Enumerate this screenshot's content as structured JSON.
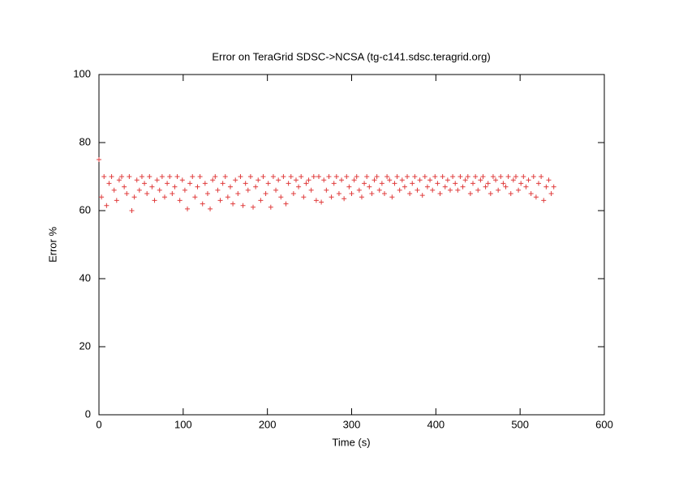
{
  "chart_data": {
    "type": "scatter",
    "title": "Error on TeraGrid SDSC->NCSA (tg-c141.sdsc.teragrid.org)",
    "xlabel": "Time (s)",
    "ylabel": "Error %",
    "xlim": [
      0,
      600
    ],
    "xticks": [
      0,
      100,
      200,
      300,
      400,
      500,
      600
    ],
    "ylim": [
      0,
      100
    ],
    "yticks": [
      0,
      20,
      40,
      60,
      80,
      100
    ],
    "marker": "plus",
    "x": [
      0,
      3,
      6,
      9,
      12,
      15,
      18,
      21,
      24,
      27,
      30,
      33,
      36,
      39,
      42,
      45,
      48,
      51,
      54,
      57,
      60,
      63,
      66,
      69,
      72,
      75,
      78,
      81,
      84,
      87,
      90,
      93,
      96,
      99,
      102,
      105,
      108,
      111,
      114,
      117,
      120,
      123,
      126,
      129,
      132,
      135,
      138,
      141,
      144,
      147,
      150,
      153,
      156,
      159,
      162,
      165,
      168,
      171,
      174,
      177,
      180,
      183,
      186,
      189,
      192,
      195,
      198,
      201,
      204,
      207,
      210,
      213,
      216,
      219,
      222,
      225,
      228,
      231,
      234,
      237,
      240,
      243,
      246,
      249,
      252,
      255,
      258,
      261,
      264,
      267,
      270,
      273,
      276,
      279,
      282,
      285,
      288,
      291,
      294,
      297,
      300,
      303,
      306,
      309,
      312,
      315,
      318,
      321,
      324,
      327,
      330,
      333,
      336,
      339,
      342,
      345,
      348,
      351,
      354,
      357,
      360,
      363,
      366,
      369,
      372,
      375,
      378,
      381,
      384,
      387,
      390,
      393,
      396,
      399,
      402,
      405,
      408,
      411,
      414,
      417,
      420,
      423,
      426,
      429,
      432,
      435,
      438,
      441,
      444,
      447,
      450,
      453,
      456,
      459,
      462,
      465,
      468,
      471,
      474,
      477,
      480,
      483,
      486,
      489,
      492,
      495,
      498,
      501,
      504,
      507,
      510,
      513,
      516,
      519,
      522,
      525,
      528,
      531,
      534,
      537,
      540
    ],
    "series": [
      {
        "color": "#e03c3c",
        "values": [
          75,
          64,
          70,
          61.5,
          68,
          70,
          66,
          63,
          69,
          70,
          67,
          65,
          70,
          60,
          64,
          69,
          66,
          70,
          68,
          65,
          70,
          67,
          63,
          69,
          66,
          70,
          64,
          68,
          70,
          65,
          67,
          70,
          63,
          69,
          66,
          60.5,
          68,
          70,
          64,
          67,
          70,
          62,
          68,
          65,
          60.5,
          69,
          70,
          66,
          63,
          68,
          70,
          64,
          67,
          62,
          69,
          65,
          70,
          61.5,
          68,
          66,
          70,
          61,
          67,
          69,
          63,
          70,
          65,
          68,
          61,
          70,
          66,
          69,
          64,
          70,
          62,
          68,
          70,
          65,
          69,
          67,
          70,
          64,
          68,
          69,
          66,
          70,
          63,
          70,
          62.5,
          69,
          66,
          70,
          64,
          68,
          70,
          65,
          69,
          63.5,
          70,
          67,
          65,
          69,
          70,
          66,
          64,
          68,
          70,
          67,
          65,
          69,
          70,
          66,
          68,
          65,
          70,
          69,
          64,
          68,
          70,
          66,
          69,
          67,
          70,
          65,
          68,
          70,
          66,
          69,
          64.5,
          70,
          67,
          69,
          66,
          70,
          68,
          65,
          70,
          67,
          69,
          66,
          70,
          68,
          66,
          70,
          67,
          69,
          70,
          65,
          68,
          70,
          66,
          69,
          70,
          67,
          68,
          65,
          70,
          69,
          66,
          70,
          68,
          67,
          70,
          65,
          69,
          70,
          66,
          68,
          70,
          67,
          69,
          65,
          70,
          64,
          68,
          70,
          63,
          67,
          69,
          65,
          67
        ]
      }
    ]
  }
}
